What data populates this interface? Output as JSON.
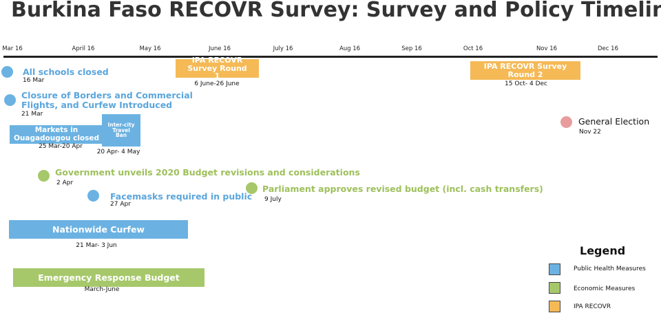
{
  "title": "Burkina Faso RECOVR Survey: Survey and Policy Timeline",
  "timeline": {
    "months": [
      "Mar 16",
      "April 16",
      "May 16",
      "June 16",
      "July 16",
      "Aug 16",
      "Sep 16",
      "Oct 16",
      "Nov 16",
      "Dec 16"
    ]
  },
  "events": [
    {
      "label": "All schools closed",
      "date": "16 Mar"
    },
    {
      "label": "Closure of Borders and Commercial Flights, and Curfew Introduced",
      "date": "21 Mar"
    },
    {
      "label": "Markets in Ouagadougou closed",
      "date": "25 Mar-20 Apr"
    },
    {
      "label": "Inter-city Travel Ban",
      "date": "20 Apr- 4 May"
    },
    {
      "label": "Government unveils 2020 Budget revisions and considerations",
      "date": "2 Apr"
    },
    {
      "label": "Facemasks required in public",
      "date": "27 Apr"
    },
    {
      "label": "Parliament approves revised budget (incl. cash transfers)",
      "date": "9 July"
    },
    {
      "label": "Nationwide Curfew",
      "date": "21 Mar- 3 Jun"
    },
    {
      "label": "Emergency Response Budget",
      "date": "March-June"
    },
    {
      "label": "IPA RECOVR Survey Round 1",
      "date": "6 June-26 June"
    },
    {
      "label": "IPA RECOVR Survey Round 2",
      "date": "15 Oct- 4 Dec"
    },
    {
      "label": "General Election",
      "date": "Nov 22"
    }
  ],
  "legend": {
    "title": "Legend",
    "items": [
      "Public Health Measures",
      "Economic Measures",
      "IPA RECOVR"
    ]
  }
}
